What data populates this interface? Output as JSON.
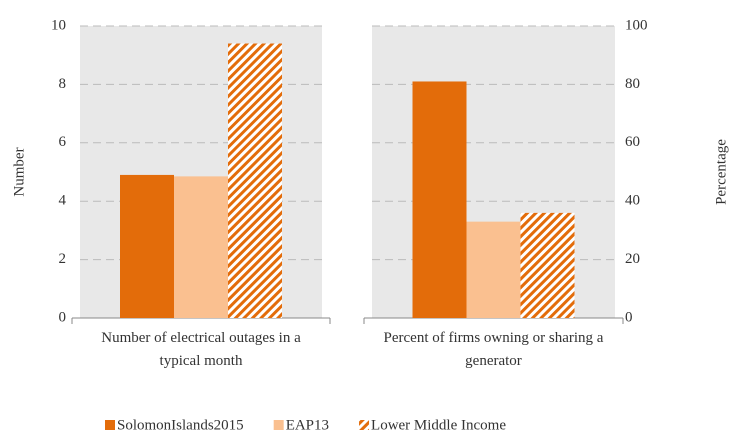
{
  "chart_data": [
    {
      "type": "bar",
      "ylabel": "Number",
      "ylim": [
        0,
        10
      ],
      "yticks": [
        0,
        2,
        4,
        6,
        8,
        10
      ],
      "grid": true,
      "categories": [
        "Number of electrical outages in a typical month"
      ],
      "series": [
        {
          "name": "SolomonIslands2015",
          "color": "#e36c0a",
          "values": [
            4.9
          ]
        },
        {
          "name": "EAP13",
          "color": "#fac090",
          "values": [
            4.85
          ]
        },
        {
          "name": "Lower Middle Income",
          "color": "#e36c0a",
          "hatch": true,
          "values": [
            9.4
          ]
        }
      ]
    },
    {
      "type": "bar",
      "y2label": "Percentage",
      "y2lim": [
        0,
        100
      ],
      "y2ticks": [
        0,
        20,
        40,
        60,
        80,
        100
      ],
      "grid": true,
      "categories": [
        "Percent of firms owning or sharing a generator"
      ],
      "series": [
        {
          "color": "#e36c0a",
          "values": [
            81
          ],
          "axis": "y2"
        },
        {
          "color": "#fac090",
          "values": [
            33
          ],
          "axis": "y2"
        },
        {
          "color": "#e36c0a",
          "hatch": true,
          "values": [
            36
          ],
          "axis": "y2"
        }
      ]
    }
  ]
}
